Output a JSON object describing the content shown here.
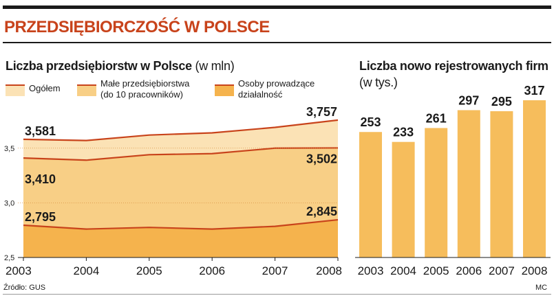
{
  "title": "PRZEDSIĘBIORCZOŚĆ W POLSCE",
  "source": "Źródło: GUS",
  "author": "MC",
  "colors": {
    "accent": "#c8431b",
    "ogolem_fill": "#fbe2b5",
    "male_fill": "#f8cf86",
    "osoby_fill": "#f5b34d",
    "line": "#c8431b",
    "bar": "#f6bd5c"
  },
  "chart_data": [
    {
      "type": "area",
      "title": "Liczba przedsiębiorstw w Polsce",
      "unit": "(w mln)",
      "x": [
        "2003",
        "2004",
        "2005",
        "2006",
        "2007",
        "2008"
      ],
      "ylim": [
        2.5,
        3.8
      ],
      "yticks": [
        "2,5",
        "3,0",
        "3,5"
      ],
      "legend": [
        {
          "label_lines": [
            "Ogółem"
          ]
        },
        {
          "label_lines": [
            "Małe przedsiębiorstwa",
            "(do 10 pracowników)"
          ]
        },
        {
          "label_lines": [
            "Osoby prowadzące",
            "działalność"
          ]
        }
      ],
      "series": [
        {
          "name": "Ogółem",
          "values": [
            3.581,
            3.57,
            3.62,
            3.64,
            3.69,
            3.757
          ],
          "labels": [
            "3,581",
            "",
            "",
            "",
            "",
            "3,757"
          ]
        },
        {
          "name": "Małe przedsiębiorstwa (do 10 pracowników)",
          "values": [
            3.41,
            3.39,
            3.44,
            3.45,
            3.5,
            3.502
          ],
          "labels": [
            "3,410",
            "",
            "",
            "",
            "",
            "3,502"
          ]
        },
        {
          "name": "Osoby prowadzące działalność",
          "values": [
            2.795,
            2.76,
            2.775,
            2.76,
            2.785,
            2.845
          ],
          "labels": [
            "2,795",
            "",
            "",
            "",
            "",
            "2,845"
          ]
        }
      ]
    },
    {
      "type": "bar",
      "title": "Liczba nowo rejestrowanych firm",
      "unit": "(w tys.)",
      "categories": [
        "2003",
        "2004",
        "2005",
        "2006",
        "2007",
        "2008"
      ],
      "values": [
        253,
        233,
        261,
        297,
        295,
        317
      ],
      "labels": [
        "253",
        "233",
        "261",
        "297",
        "295",
        "317"
      ],
      "ylim": [
        0,
        317
      ]
    }
  ]
}
